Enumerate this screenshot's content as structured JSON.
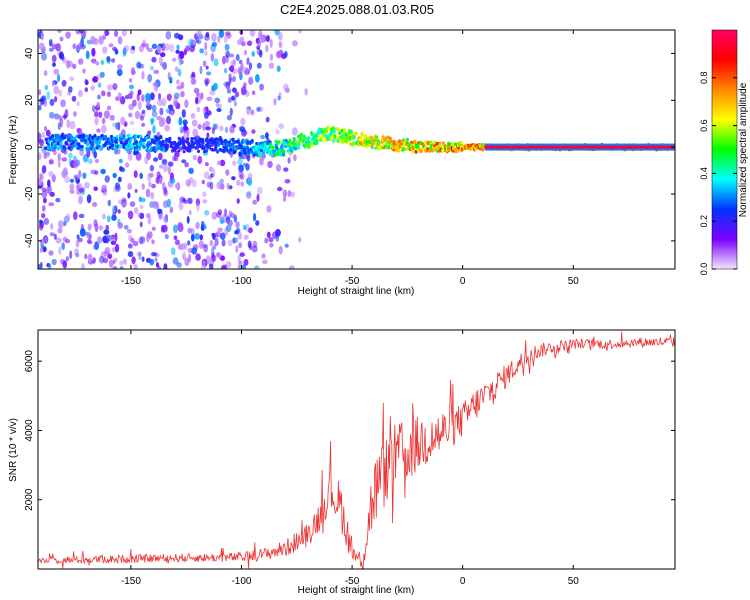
{
  "figure": {
    "title": "C2E4.2025.088.01.03.R05"
  },
  "chart_data": [
    {
      "type": "heatmap",
      "xlabel": "Height of straight line (km)",
      "ylabel": "Frequency (Hz)",
      "xlim": [
        -192,
        96
      ],
      "ylim": [
        -52,
        50
      ],
      "x_ticks": [
        -150,
        -100,
        -50,
        0,
        50
      ],
      "y_ticks": [
        -40,
        -20,
        0,
        20,
        40
      ],
      "colorbar": {
        "label": "Normalized spectral amplitude",
        "range": [
          0,
          1
        ],
        "ticks": [
          0.0,
          0.2,
          0.4,
          0.6,
          0.8
        ],
        "colormap": [
          "#f2e6ff",
          "#7b00ff",
          "#0033ff",
          "#00ffff",
          "#00ff00",
          "#ffff00",
          "#ff8800",
          "#ff0000",
          "#ff0066"
        ]
      },
      "ridge": {
        "x": [
          -170,
          -150,
          -130,
          -110,
          -100,
          -90,
          -80,
          -70,
          -60,
          -55,
          -50,
          -45,
          -40,
          -35,
          -30,
          -25,
          -20,
          -10,
          0,
          10,
          30,
          60,
          96
        ],
        "y": [
          2,
          2,
          1,
          1,
          0,
          -1,
          0,
          3,
          6,
          5,
          4,
          3,
          2,
          2,
          1,
          1,
          0,
          0,
          0,
          0,
          0,
          0,
          0
        ],
        "amplitude": [
          0.35,
          0.4,
          0.3,
          0.3,
          0.35,
          0.45,
          0.55,
          0.6,
          0.65,
          0.7,
          0.75,
          0.75,
          0.75,
          0.78,
          0.8,
          0.8,
          0.85,
          0.88,
          0.9,
          0.92,
          0.95,
          0.95,
          0.95
        ]
      },
      "grid": false
    },
    {
      "type": "line",
      "xlabel": "Height of straight line (km)",
      "ylabel": "SNR (10 * v/v)",
      "xlim": [
        -192,
        96
      ],
      "ylim": [
        0,
        6900
      ],
      "x_ticks": [
        -150,
        -100,
        -50,
        0,
        50
      ],
      "y_ticks": [
        2000,
        4000,
        6000
      ],
      "color": "#ee3333",
      "x": [
        -192,
        -170,
        -150,
        -130,
        -110,
        -100,
        -90,
        -80,
        -70,
        -65,
        -60,
        -55,
        -52,
        -50,
        -47,
        -45,
        -42,
        -40,
        -35,
        -30,
        -25,
        -20,
        -15,
        -10,
        -5,
        0,
        5,
        10,
        15,
        20,
        25,
        30,
        40,
        50,
        60,
        70,
        80,
        96
      ],
      "y": [
        250,
        270,
        300,
        320,
        330,
        340,
        420,
        600,
        1000,
        1500,
        2300,
        1800,
        1000,
        500,
        300,
        400,
        1600,
        2200,
        2800,
        3300,
        3400,
        3600,
        3800,
        3900,
        4100,
        4300,
        4700,
        5000,
        5300,
        5600,
        5900,
        6200,
        6400,
        6500,
        6500,
        6500,
        6550,
        6550
      ],
      "noise": [
        100,
        110,
        120,
        120,
        130,
        140,
        180,
        250,
        350,
        450,
        600,
        700,
        500,
        300,
        200,
        600,
        900,
        1100,
        1000,
        950,
        900,
        850,
        800,
        700,
        600,
        500,
        500,
        450,
        400,
        350,
        300,
        250,
        180,
        150,
        140,
        140,
        140,
        140
      ],
      "grid": false
    }
  ]
}
